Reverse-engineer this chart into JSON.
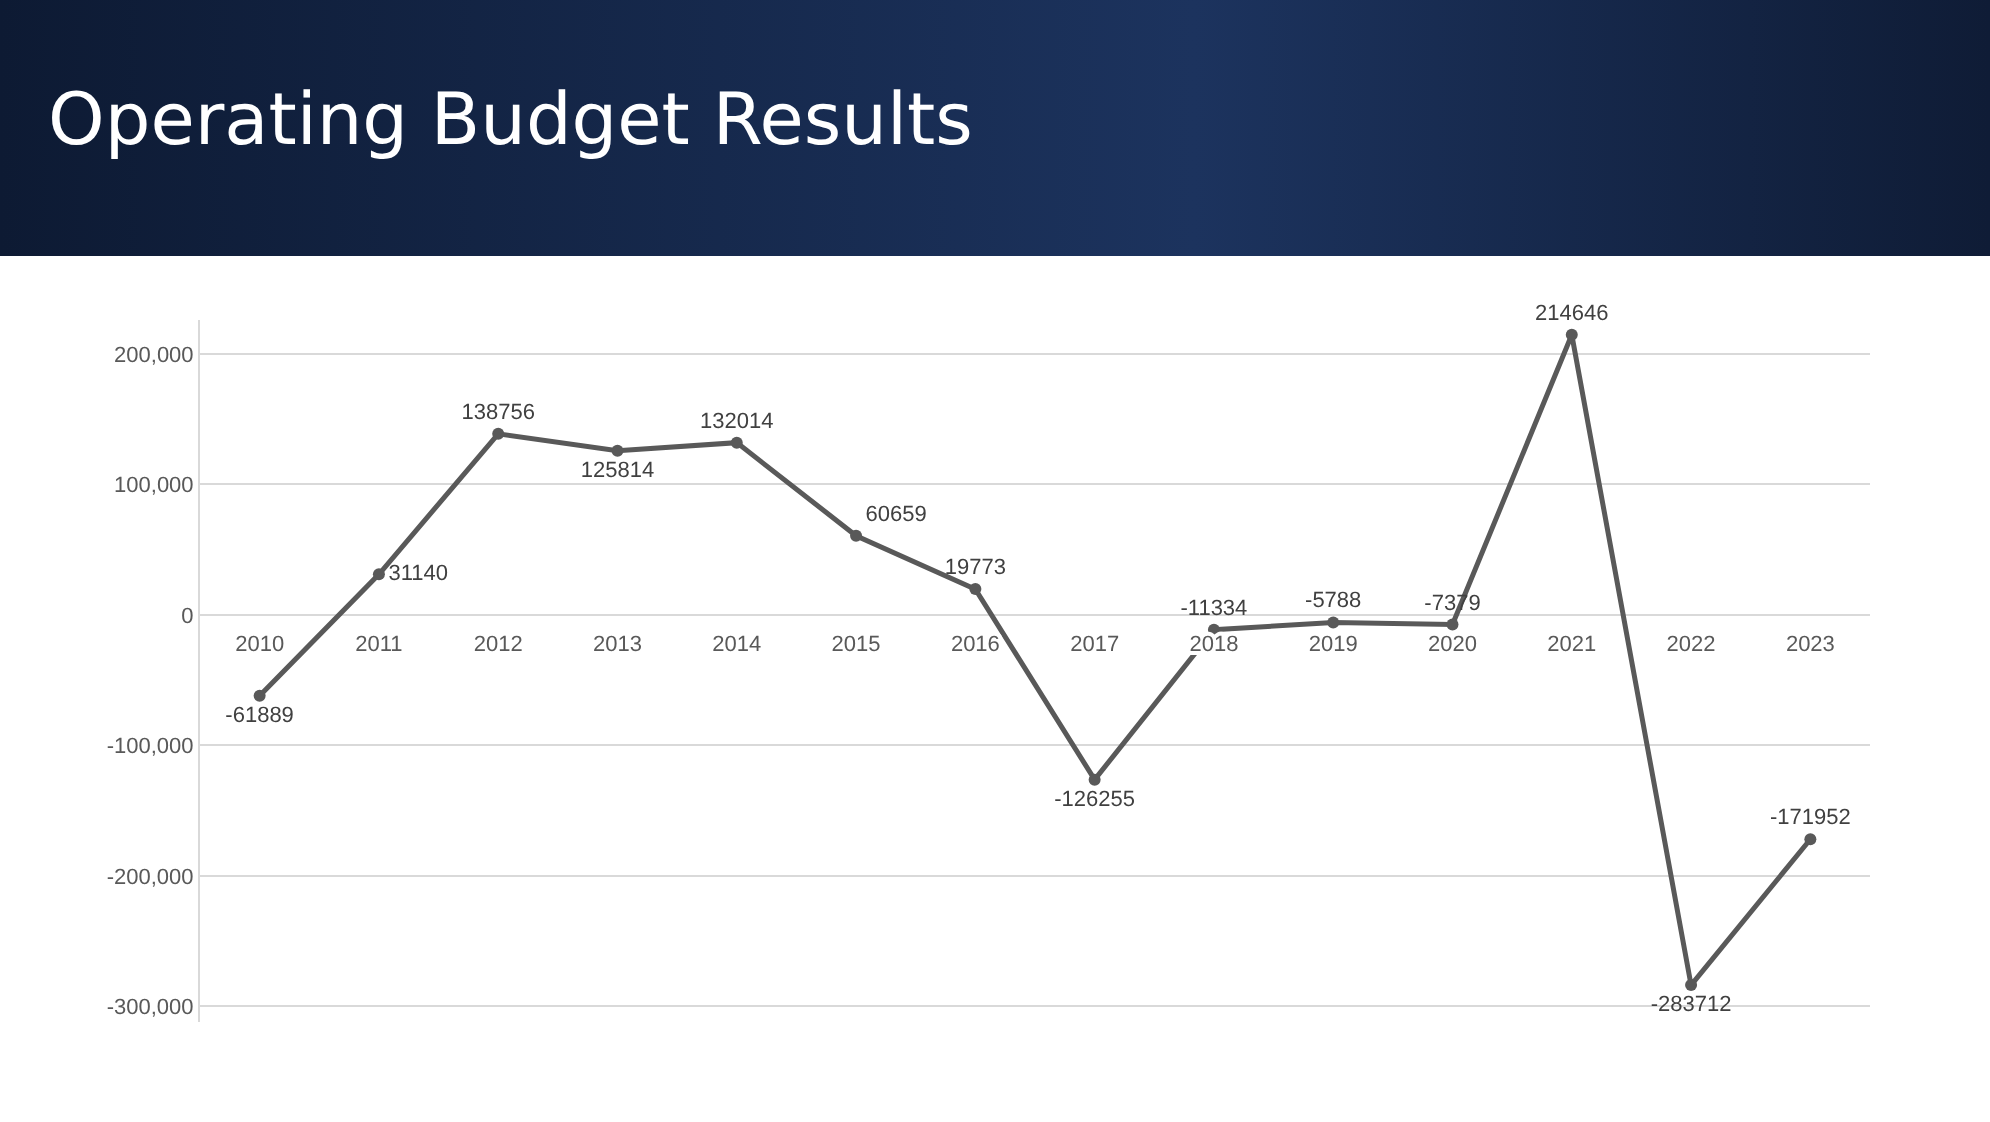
{
  "chart_data": {
    "type": "line",
    "title": "Operating Budget Results",
    "categories": [
      "2010",
      "2011",
      "2012",
      "2013",
      "2014",
      "2015",
      "2016",
      "2017",
      "2018",
      "2019",
      "2020",
      "2021",
      "2022",
      "2023"
    ],
    "values": [
      -61889,
      31140,
      138756,
      125814,
      132014,
      60659,
      19773,
      -126255,
      -11334,
      -5788,
      -7379,
      214646,
      -283712,
      -171952
    ],
    "color": "#595959",
    "marker": "circle",
    "line_style": "solid",
    "data_labels": true,
    "grid": "y",
    "ylim": [
      -312000,
      226000
    ],
    "yticks": [
      {
        "value": -300000,
        "label": "-300,000"
      },
      {
        "value": -200000,
        "label": "-200,000"
      },
      {
        "value": -100000,
        "label": "-100,000"
      },
      0,
      {
        "value": 100000,
        "label": "100,000"
      },
      {
        "value": 200000,
        "label": "200,000"
      }
    ]
  }
}
